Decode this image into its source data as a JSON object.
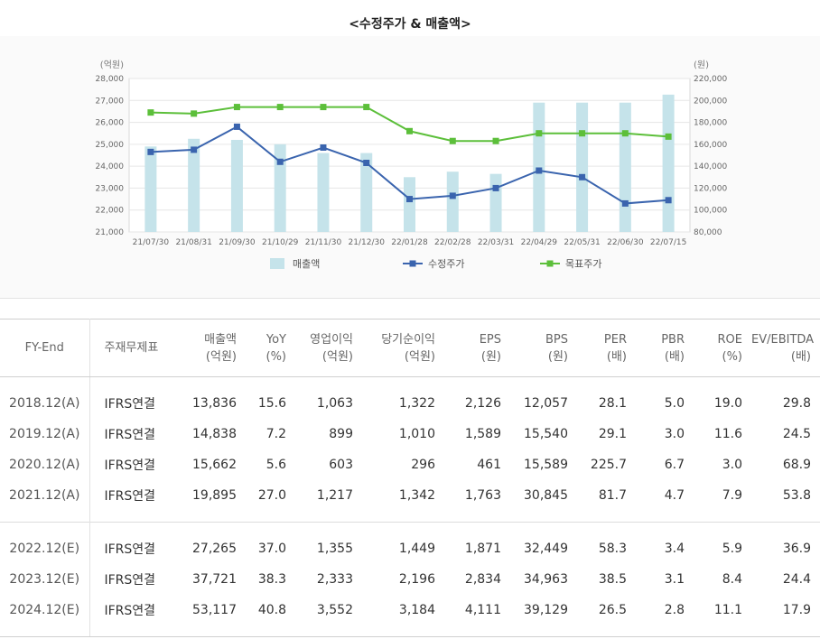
{
  "title": "<수정주가 & 매출액>",
  "colors": {
    "bar": "#c5e3ea",
    "price": "#3a64ae",
    "target": "#5cbf3a"
  },
  "chart_data": {
    "type": "bar+line",
    "categories": [
      "21/07/30",
      "21/08/31",
      "21/09/30",
      "21/10/29",
      "21/11/30",
      "21/12/30",
      "22/01/28",
      "22/02/28",
      "22/03/31",
      "22/04/29",
      "22/05/31",
      "22/06/30",
      "22/07/15"
    ],
    "left_axis": {
      "unit_label": "(억원)",
      "ylim": [
        21000,
        28000
      ],
      "ticks": [
        "28,000",
        "27,000",
        "26,000",
        "25,000",
        "24,000",
        "23,000",
        "22,000",
        "21,000"
      ]
    },
    "right_axis": {
      "unit_label": "(원)",
      "ylim": [
        80000,
        220000
      ],
      "ticks": [
        "220,000",
        "200,000",
        "180,000",
        "160,000",
        "140,000",
        "120,000",
        "100,000",
        "80,000"
      ]
    },
    "series": [
      {
        "name": "매출액",
        "type": "bar",
        "axis": "left",
        "values": [
          24900,
          25250,
          25200,
          25000,
          24600,
          24600,
          23500,
          23750,
          23650,
          26900,
          26900,
          26900,
          27265
        ]
      },
      {
        "name": "수정주가",
        "type": "line",
        "axis": "right",
        "values": [
          153000,
          155000,
          176000,
          144000,
          157000,
          143000,
          110000,
          113000,
          120000,
          136000,
          130000,
          106000,
          109000
        ]
      },
      {
        "name": "목표주가",
        "type": "line",
        "axis": "right",
        "values": [
          189000,
          188000,
          194000,
          194000,
          194000,
          194000,
          172000,
          163000,
          163000,
          170000,
          170000,
          170000,
          167000
        ]
      }
    ],
    "legend_position": "bottom",
    "grid": true
  },
  "table": {
    "headers": [
      {
        "l1": "FY-End",
        "l2": ""
      },
      {
        "l1": "주재무제표",
        "l2": ""
      },
      {
        "l1": "매출액",
        "l2": "(억원)"
      },
      {
        "l1": "YoY",
        "l2": "(%)"
      },
      {
        "l1": "영업이익",
        "l2": "(억원)"
      },
      {
        "l1": "당기순이익",
        "l2": "(억원)"
      },
      {
        "l1": "EPS",
        "l2": "(원)"
      },
      {
        "l1": "BPS",
        "l2": "(원)"
      },
      {
        "l1": "PER",
        "l2": "(배)"
      },
      {
        "l1": "PBR",
        "l2": "(배)"
      },
      {
        "l1": "ROE",
        "l2": "(%)"
      },
      {
        "l1": "EV/EBITDA",
        "l2": "(배)"
      }
    ],
    "actual": [
      [
        "2018.12(A)",
        "IFRS연결",
        "13,836",
        "15.6",
        "1,063",
        "1,322",
        "2,126",
        "12,057",
        "28.1",
        "5.0",
        "19.0",
        "29.8"
      ],
      [
        "2019.12(A)",
        "IFRS연결",
        "14,838",
        "7.2",
        "899",
        "1,010",
        "1,589",
        "15,540",
        "29.1",
        "3.0",
        "11.6",
        "24.5"
      ],
      [
        "2020.12(A)",
        "IFRS연결",
        "15,662",
        "5.6",
        "603",
        "296",
        "461",
        "15,589",
        "225.7",
        "6.7",
        "3.0",
        "68.9"
      ],
      [
        "2021.12(A)",
        "IFRS연결",
        "19,895",
        "27.0",
        "1,217",
        "1,342",
        "1,763",
        "30,845",
        "81.7",
        "4.7",
        "7.9",
        "53.8"
      ]
    ],
    "estimate": [
      [
        "2022.12(E)",
        "IFRS연결",
        "27,265",
        "37.0",
        "1,355",
        "1,449",
        "1,871",
        "32,449",
        "58.3",
        "3.4",
        "5.9",
        "36.9"
      ],
      [
        "2023.12(E)",
        "IFRS연결",
        "37,721",
        "38.3",
        "2,333",
        "2,196",
        "2,834",
        "34,963",
        "38.5",
        "3.1",
        "8.4",
        "24.4"
      ],
      [
        "2024.12(E)",
        "IFRS연결",
        "53,117",
        "40.8",
        "3,552",
        "3,184",
        "4,111",
        "39,129",
        "26.5",
        "2.8",
        "11.1",
        "17.9"
      ]
    ]
  }
}
